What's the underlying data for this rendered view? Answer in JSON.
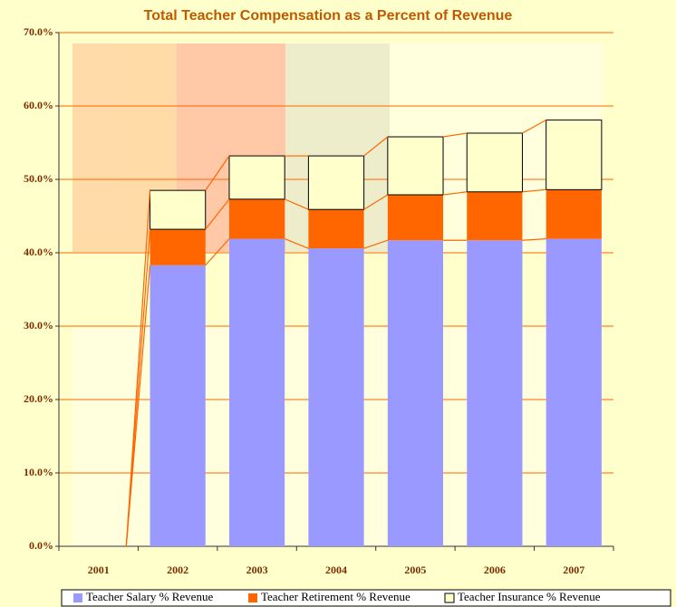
{
  "chart_data": {
    "type": "stacked_bar",
    "title": "Total Teacher Compensation as a Percent of Revenue",
    "categories": [
      "2001",
      "2002",
      "2003",
      "2004",
      "2005",
      "2006",
      "2007"
    ],
    "series": [
      {
        "name": "Teacher Salary % Revenue",
        "color": "#9999ff",
        "values": [
          0,
          38.3,
          41.9,
          40.6,
          41.7,
          41.7,
          41.9
        ]
      },
      {
        "name": "Teacher Retirement % Revenue",
        "color": "#ff6600",
        "values": [
          0,
          4.9,
          5.4,
          5.3,
          6.2,
          6.6,
          6.7
        ]
      },
      {
        "name": "Teacher Insurance % Revenue",
        "color": "#ffffcc",
        "values": [
          0,
          5.3,
          5.9,
          7.3,
          7.9,
          8.0,
          9.5
        ]
      }
    ],
    "ylim": [
      0,
      70
    ],
    "yticks": [
      {
        "value": 0,
        "label": "0.0%"
      },
      {
        "value": 10,
        "label": "10.0%"
      },
      {
        "value": 20,
        "label": "20.0%"
      },
      {
        "value": 30,
        "label": "30.0%"
      },
      {
        "value": 40,
        "label": "40.0%"
      },
      {
        "value": 50,
        "label": "50.0%"
      },
      {
        "value": 60,
        "label": "60.0%"
      },
      {
        "value": 70,
        "label": "70.0%"
      }
    ],
    "grid": true,
    "legend": "bottom",
    "series_lines": true
  }
}
